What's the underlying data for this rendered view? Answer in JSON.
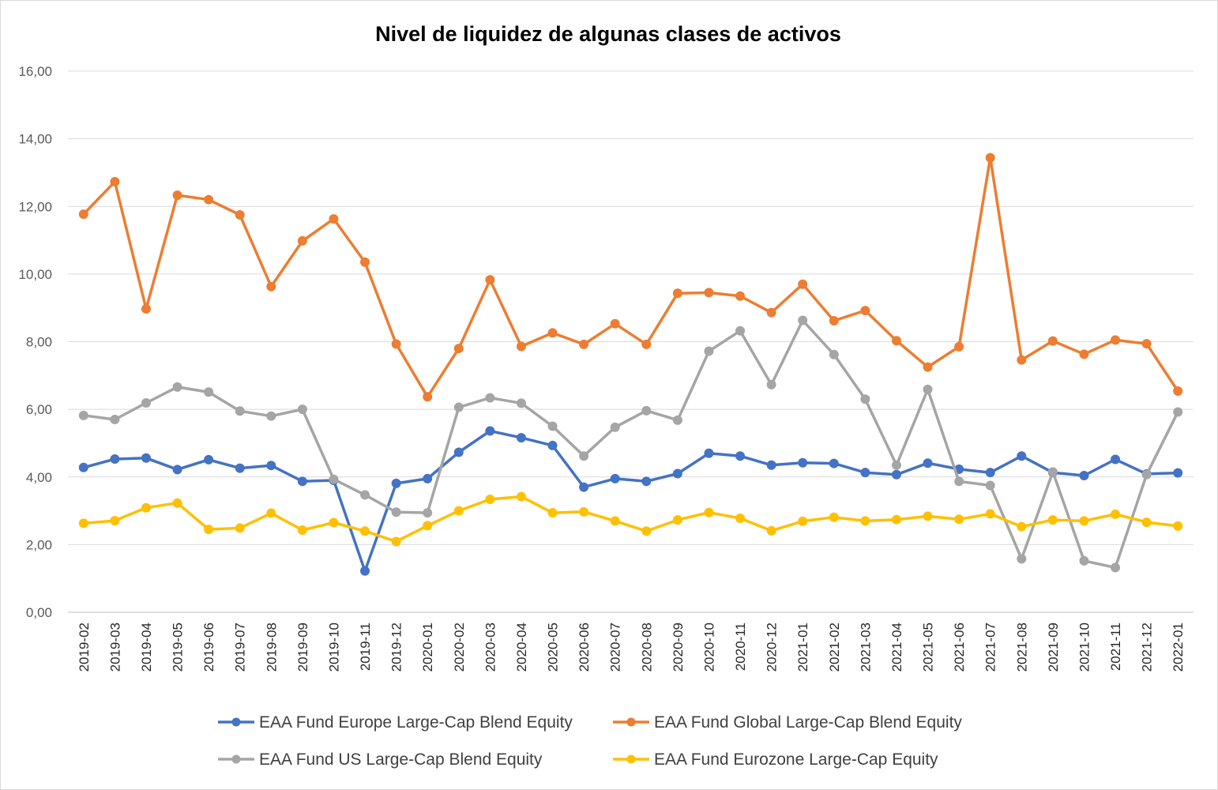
{
  "chart_data": {
    "type": "line",
    "title": "Nivel de liquidez de algunas clases de activos",
    "xlabel": "",
    "ylabel": "",
    "ylim": [
      0,
      16
    ],
    "y_ticks": [
      "0,00",
      "2,00",
      "4,00",
      "6,00",
      "8,00",
      "10,00",
      "12,00",
      "14,00",
      "16,00"
    ],
    "grid": "horizontal",
    "legend_position": "bottom",
    "categories": [
      "2019-02",
      "2019-03",
      "2019-04",
      "2019-05",
      "2019-06",
      "2019-07",
      "2019-08",
      "2019-09",
      "2019-10",
      "2019-11",
      "2019-12",
      "2020-01",
      "2020-02",
      "2020-03",
      "2020-04",
      "2020-05",
      "2020-06",
      "2020-07",
      "2020-08",
      "2020-09",
      "2020-10",
      "2020-11",
      "2020-12",
      "2021-01",
      "2021-02",
      "2021-03",
      "2021-04",
      "2021-05",
      "2021-06",
      "2021-07",
      "2021-08",
      "2021-09",
      "2021-10",
      "2021-11",
      "2021-12",
      "2022-01"
    ],
    "series": [
      {
        "name": "EAA Fund Europe Large-Cap Blend Equity",
        "color": "#4472C4",
        "values": [
          4.28,
          4.53,
          4.56,
          4.22,
          4.51,
          4.26,
          4.34,
          3.87,
          3.9,
          1.22,
          3.81,
          3.95,
          4.73,
          5.36,
          5.16,
          4.93,
          3.7,
          3.95,
          3.87,
          4.1,
          4.7,
          4.62,
          4.35,
          4.42,
          4.4,
          4.13,
          4.07,
          4.41,
          4.23,
          4.13,
          4.62,
          4.13,
          4.04,
          4.52,
          4.09,
          4.12
        ]
      },
      {
        "name": "EAA Fund Global Large-Cap Blend Equity",
        "color": "#ED7D31",
        "values": [
          11.77,
          12.73,
          8.97,
          12.33,
          12.2,
          11.75,
          9.63,
          10.98,
          11.63,
          10.35,
          7.93,
          6.37,
          7.8,
          9.83,
          7.86,
          8.26,
          7.92,
          8.53,
          7.92,
          9.43,
          9.45,
          9.35,
          8.86,
          9.7,
          8.62,
          8.92,
          8.03,
          7.25,
          7.85,
          13.44,
          7.46,
          8.02,
          7.63,
          8.05,
          7.94,
          6.54
        ]
      },
      {
        "name": "EAA Fund US Large-Cap Blend Equity",
        "color": "#A5A5A5",
        "values": [
          5.82,
          5.7,
          6.19,
          6.66,
          6.51,
          5.95,
          5.8,
          6.0,
          3.93,
          3.47,
          2.96,
          2.94,
          6.06,
          6.34,
          6.18,
          5.5,
          4.62,
          5.47,
          5.96,
          5.68,
          7.72,
          8.32,
          6.73,
          8.63,
          7.62,
          6.3,
          4.35,
          6.59,
          3.87,
          3.75,
          1.58,
          4.15,
          1.52,
          1.32,
          4.07,
          5.92
        ]
      },
      {
        "name": "EAA Fund Eurozone Large-Cap Equity",
        "color": "#FFC000",
        "values": [
          2.63,
          2.71,
          3.09,
          3.23,
          2.45,
          2.49,
          2.93,
          2.43,
          2.65,
          2.4,
          2.09,
          2.56,
          3.0,
          3.34,
          3.42,
          2.94,
          2.97,
          2.7,
          2.4,
          2.73,
          2.95,
          2.78,
          2.41,
          2.69,
          2.81,
          2.7,
          2.74,
          2.84,
          2.75,
          2.91,
          2.53,
          2.73,
          2.7,
          2.9,
          2.66,
          2.55
        ]
      }
    ]
  }
}
